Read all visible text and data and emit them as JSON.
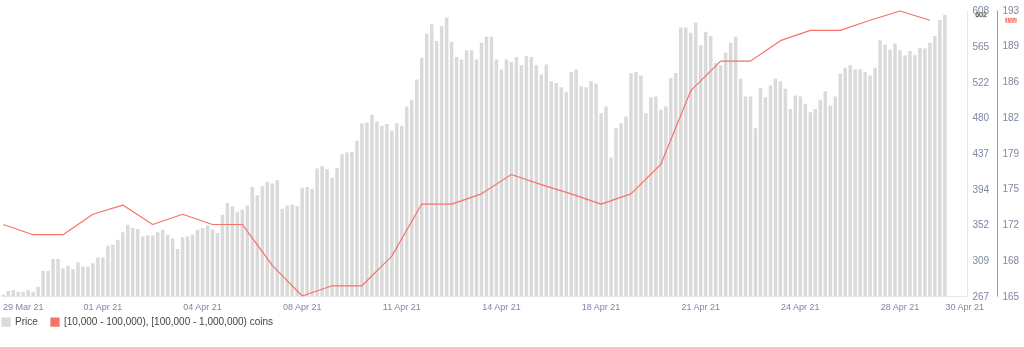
{
  "chart_data": {
    "type": "bar",
    "categories": [
      null,
      null,
      null,
      null,
      "29 Mar 21",
      null,
      null,
      null,
      null,
      null,
      null,
      null,
      null,
      null,
      null,
      null,
      null,
      null,
      null,
      null,
      "01 Apr 21",
      null,
      null,
      null,
      null,
      null,
      null,
      null,
      null,
      null,
      null,
      null,
      null,
      null,
      null,
      null,
      null,
      null,
      null,
      null,
      "04 Apr 21",
      null,
      null,
      null,
      null,
      null,
      null,
      null,
      null,
      null,
      null,
      null,
      null,
      null,
      null,
      null,
      null,
      null,
      null,
      null,
      "08 Apr 21",
      null,
      null,
      null,
      null,
      null,
      null,
      null,
      null,
      null,
      null,
      null,
      null,
      null,
      null,
      null,
      null,
      null,
      null,
      null,
      "11 Apr 21",
      null,
      null,
      null,
      null,
      null,
      null,
      null,
      null,
      null,
      null,
      null,
      null,
      null,
      null,
      null,
      null,
      null,
      null,
      null,
      "14 Apr 21",
      null,
      null,
      null,
      null,
      null,
      null,
      null,
      null,
      null,
      null,
      null,
      null,
      null,
      null,
      null,
      null,
      null,
      null,
      null,
      "18 Apr 21",
      null,
      null,
      null,
      null,
      null,
      null,
      null,
      null,
      null,
      null,
      null,
      null,
      null,
      null,
      null,
      null,
      null,
      null,
      null,
      "21 Apr 21",
      null,
      null,
      null,
      null,
      null,
      null,
      null,
      null,
      null,
      null,
      null,
      null,
      null,
      null,
      null,
      null,
      null,
      null,
      null,
      "24 Apr 21",
      null,
      null,
      null,
      null,
      null,
      null,
      null,
      null,
      null,
      null,
      null,
      null,
      null,
      null,
      null,
      null,
      null,
      null,
      null,
      "28 Apr 21",
      null,
      null,
      null,
      null,
      null,
      null,
      null,
      null,
      null,
      null,
      null,
      null,
      "30 Apr 21"
    ],
    "series": [
      {
        "name": "Price",
        "color": "#dadada",
        "values": [
          269,
          273,
          274,
          272,
          272,
          274,
          272,
          278,
          297,
          297,
          311,
          311,
          300,
          303,
          299,
          307,
          302,
          302,
          306,
          313,
          313,
          327,
          328,
          334,
          343,
          352,
          348,
          347,
          338,
          339,
          339,
          343,
          346,
          340,
          336,
          323,
          337,
          338,
          340,
          346,
          348,
          351,
          346,
          342,
          364,
          378,
          374,
          367,
          370,
          375,
          397,
          387,
          398,
          403,
          401,
          405,
          371,
          375,
          376,
          374,
          396,
          397,
          395,
          419,
          422,
          418,
          408,
          420,
          436,
          438,
          439,
          452,
          473,
          474,
          483,
          475,
          470,
          472,
          464,
          473,
          470,
          493,
          501,
          525,
          551,
          580,
          591,
          571,
          589,
          599,
          570,
          552,
          549,
          560,
          560,
          549,
          569,
          576,
          576,
          549,
          537,
          549,
          546,
          552,
          542,
          553,
          552,
          542,
          531,
          543,
          523,
          521,
          516,
          510,
          534,
          537,
          517,
          516,
          523,
          520,
          485,
          493,
          432,
          467,
          473,
          481,
          533,
          534,
          530,
          485,
          504,
          505,
          489,
          493,
          527,
          533,
          587,
          587,
          581,
          593,
          566,
          582,
          577,
          545,
          542,
          557,
          569,
          576,
          526,
          505,
          505,
          467,
          515,
          504,
          518,
          526,
          523,
          514,
          490,
          506,
          505,
          496,
          486,
          490,
          501,
          511,
          494,
          505,
          532,
          539,
          542,
          537,
          537,
          534,
          530,
          539,
          572,
          567,
          561,
          568,
          560,
          554,
          559,
          554,
          563,
          562,
          569,
          577,
          596,
          602,
          null,
          null,
          null,
          null
        ]
      },
      {
        "name": "[10,000 - 100,000), [100,000  - 1,000,000) coins",
        "type": "line",
        "axis": "y2",
        "color": "#f5736b",
        "values": [
          172.0,
          null,
          null,
          null,
          null,
          null,
          171.0,
          null,
          null,
          null,
          null,
          null,
          171.0,
          null,
          null,
          null,
          null,
          null,
          173.0,
          null,
          null,
          null,
          null,
          null,
          173.9,
          null,
          null,
          null,
          null,
          null,
          172.0,
          null,
          null,
          null,
          null,
          null,
          173.0,
          null,
          null,
          null,
          null,
          null,
          172.0,
          null,
          null,
          null,
          null,
          null,
          172.0,
          null,
          null,
          null,
          null,
          null,
          168.0,
          null,
          null,
          null,
          null,
          null,
          165.0,
          null,
          null,
          null,
          null,
          null,
          166.0,
          null,
          null,
          null,
          null,
          null,
          166.0,
          null,
          null,
          null,
          null,
          null,
          168.9,
          null,
          null,
          null,
          null,
          null,
          174.0,
          null,
          null,
          null,
          null,
          null,
          174.0,
          null,
          null,
          null,
          null,
          null,
          175.0,
          null,
          null,
          null,
          null,
          null,
          176.9,
          null,
          null,
          null,
          null,
          null,
          175.9,
          null,
          null,
          null,
          null,
          null,
          175.0,
          null,
          null,
          null,
          null,
          null,
          174.0,
          null,
          null,
          null,
          null,
          null,
          175.0,
          null,
          null,
          null,
          null,
          null,
          177.9,
          null,
          null,
          null,
          null,
          null,
          185.1,
          null,
          null,
          null,
          null,
          null,
          188.0,
          null,
          null,
          null,
          null,
          null,
          188.0,
          null,
          null,
          null,
          null,
          null,
          190.0,
          null,
          null,
          null,
          null,
          null,
          191.0,
          null,
          null,
          null,
          null,
          null,
          191.0,
          null,
          null,
          null,
          null,
          null,
          192.0,
          null,
          null,
          null,
          null,
          null,
          192.9,
          null,
          null,
          null,
          null,
          null,
          192.0,
          null,
          null,
          null,
          null,
          null,
          null,
          null
        ]
      }
    ],
    "ylim": [
      267,
      608
    ],
    "yticks": [
      267,
      309,
      352,
      394,
      437,
      480,
      522,
      565,
      608
    ],
    "y2lim": [
      165,
      193
    ],
    "y2ticks": [
      165,
      {
        "value": 168.5,
        "label": "168"
      },
      172,
      {
        "value": 175.5,
        "label": "175"
      },
      179,
      {
        "value": 182.5,
        "label": "182"
      },
      186,
      {
        "value": 189.5,
        "label": "189"
      },
      193
    ],
    "annotations": [
      "602",
      "192"
    ],
    "legend": "bottom"
  }
}
